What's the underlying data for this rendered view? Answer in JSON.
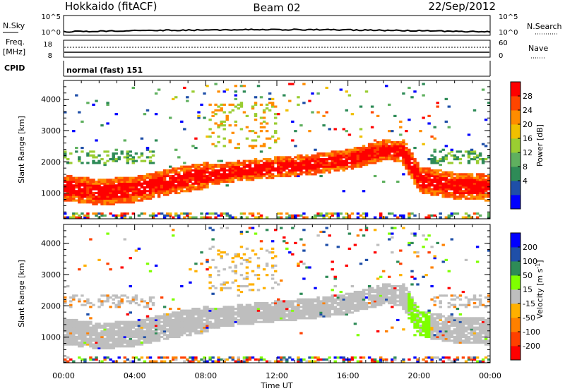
{
  "header": {
    "station": "Hokkaido (fitACF)",
    "beam": "Beam 02",
    "date": "22/Sep/2012"
  },
  "top_panels": {
    "nsky_label": "N.Sky",
    "nsky_ticks": [
      "10^5",
      "10^0"
    ],
    "nsearch_label": "N.Search",
    "nsearch_ticks": [
      "10^5",
      "10^0"
    ],
    "freq_label_1": "Freq.",
    "freq_label_2": "[MHz]",
    "freq_ticks": [
      "18",
      "8"
    ],
    "nave_label": "Nave",
    "nave_ticks": [
      "60",
      "0"
    ],
    "cpid_label": "CPID",
    "cpid_value": "normal (fast) 151"
  },
  "chart_data": [
    {
      "type": "heatmap",
      "name": "power",
      "ylabel": "Slant Range [km]",
      "ylim": [
        180,
        4600
      ],
      "yticks": [
        "4000",
        "3000",
        "2000",
        "1000"
      ],
      "colorbar_label": "Power [dB]",
      "colorbar_ticks": [
        "28",
        "24",
        "20",
        "16",
        "12",
        "8",
        "4"
      ],
      "colors": [
        "#0000ff",
        "#1f4fa8",
        "#2e8b57",
        "#5fb05f",
        "#9acd32",
        "#f0c000",
        "#ff8c00",
        "#ff4500",
        "#ff0000"
      ],
      "bands": [
        {
          "t": 0,
          "r": 1150
        },
        {
          "t": 2,
          "r": 1000
        },
        {
          "t": 4,
          "r": 1100
        },
        {
          "t": 6,
          "r": 1350
        },
        {
          "t": 8,
          "r": 1550
        },
        {
          "t": 10,
          "r": 1700
        },
        {
          "t": 12,
          "r": 1800
        },
        {
          "t": 14,
          "r": 1900
        },
        {
          "t": 16,
          "r": 2050
        },
        {
          "t": 18,
          "r": 2350
        },
        {
          "t": 19,
          "r": 2300
        },
        {
          "t": 20,
          "r": 1400
        },
        {
          "t": 22,
          "r": 1200
        },
        {
          "t": 24,
          "r": 1150
        }
      ]
    },
    {
      "type": "heatmap",
      "name": "velocity",
      "ylabel": "Slant Range [km]",
      "ylim": [
        180,
        4600
      ],
      "yticks": [
        "4000",
        "3000",
        "2000",
        "1000"
      ],
      "colorbar_label": "Velocity [m s",
      "colorbar_label_sup": "-1",
      "colorbar_label_end": "]",
      "colorbar_ticks": [
        "200",
        "100",
        "50",
        "15",
        "-15",
        "-50",
        "-100",
        "-200"
      ],
      "colors": [
        "#ff0000",
        "#ff4000",
        "#ff8000",
        "#ffb000",
        "#bebebe",
        "#7fff00",
        "#2e8b57",
        "#1f4fa8",
        "#0000ff"
      ],
      "xticks": [
        "00:00",
        "04:00",
        "08:00",
        "12:00",
        "16:00",
        "20:00",
        "00:00"
      ],
      "xlabel": "Time UT"
    }
  ]
}
